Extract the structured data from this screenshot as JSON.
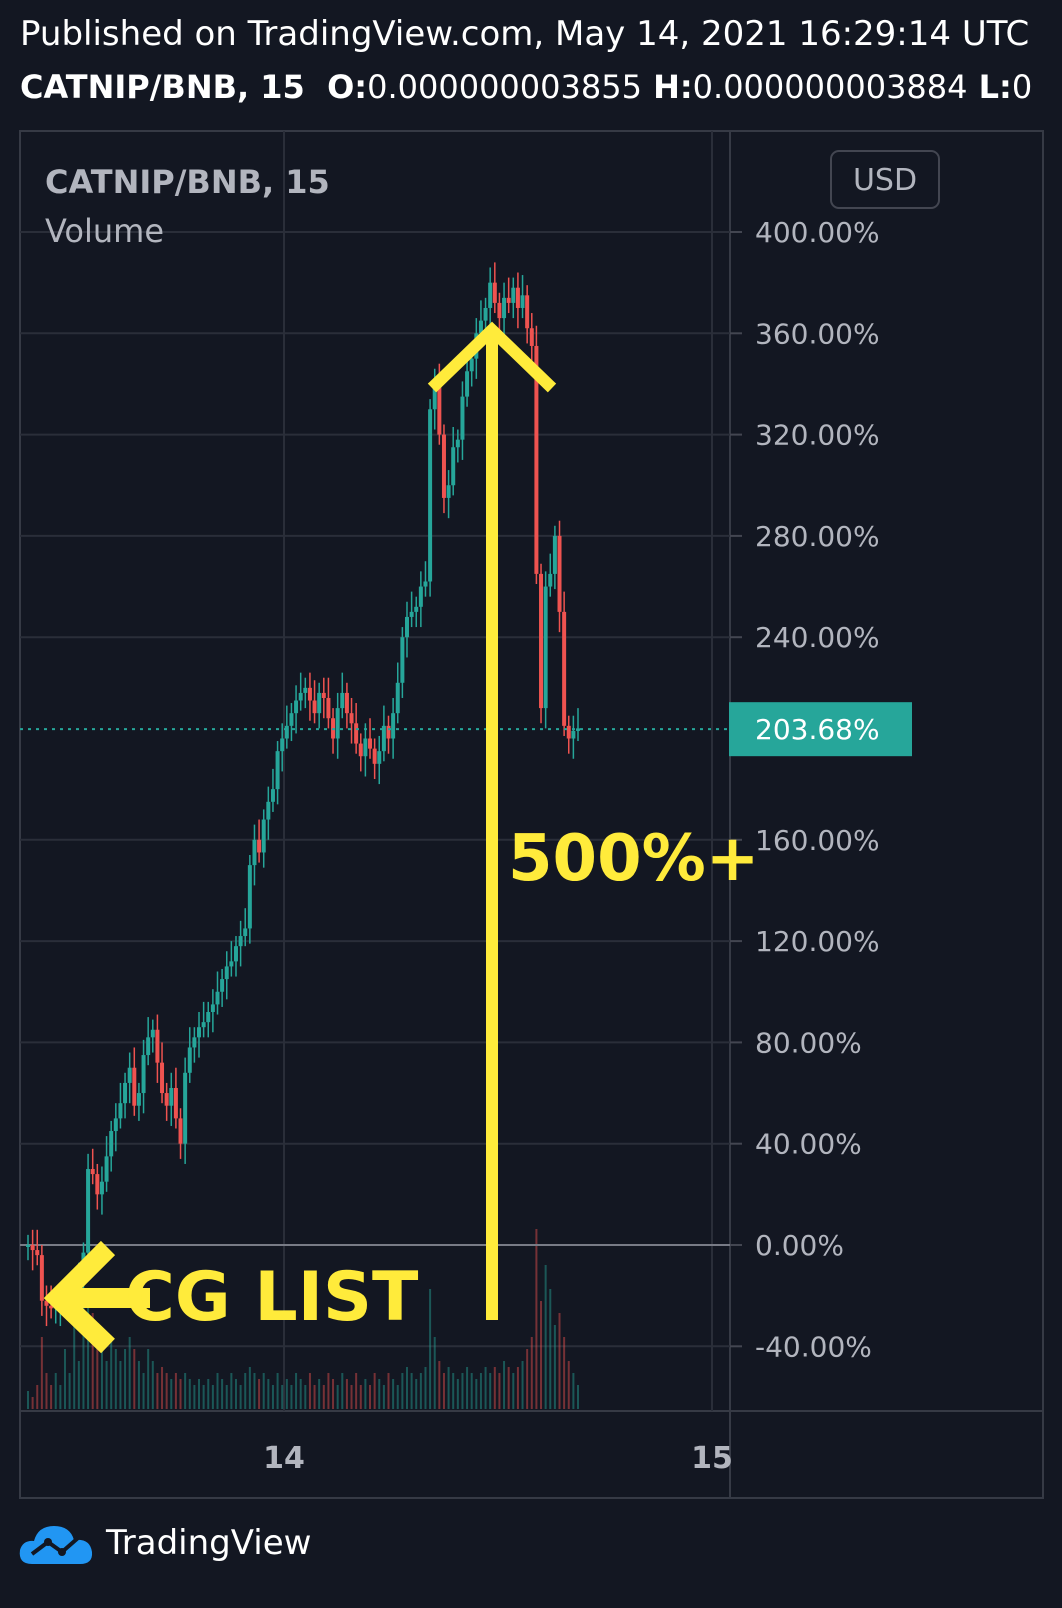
{
  "header": {
    "published": "Published on TradingView.com, May 14, 2021 16:29:14 UTC",
    "symbol": "CATNIP/BNB, 15",
    "o_label": "O:",
    "o_value": "0.000000003855",
    "h_label": "H:",
    "h_value": "0.000000003884",
    "l_label": "L:",
    "l_value": "0"
  },
  "legend": {
    "symbol": "CATNIP/BNB, 15",
    "volume": "Volume"
  },
  "currency_button": "USD",
  "annotations": {
    "gain": "500%+",
    "listing": "CG LIST"
  },
  "brand": "TradingView",
  "colors": {
    "background": "#131722",
    "up": "#26a69a",
    "down": "#ef5350",
    "annotation": "#ffeb3b",
    "last_price_bg": "#26a69a"
  },
  "chart_data": {
    "type": "candlestick",
    "title": "CATNIP/BNB, 15",
    "ylabel": "",
    "xlabel": "",
    "y_scale": "percent",
    "ylim": [
      -64,
      404
    ],
    "y_ticks": [
      "400.00%",
      "360.00%",
      "320.00%",
      "280.00%",
      "240.00%",
      "160.00%",
      "120.00%",
      "80.00%",
      "40.00%",
      "0.00%",
      "-40.00%"
    ],
    "x_ticks": [
      "14",
      "15"
    ],
    "last_value": 203.68,
    "last_label": "203.68%",
    "grid": true,
    "candles_close": [
      0,
      -2,
      -4,
      -22,
      -24,
      -25,
      -24,
      -23,
      -22,
      -20,
      -19,
      -15,
      -3,
      30,
      28,
      20,
      25,
      35,
      45,
      50,
      56,
      64,
      70,
      55,
      60,
      75,
      82,
      85,
      72,
      60,
      55,
      62,
      50,
      40,
      68,
      78,
      82,
      86,
      88,
      92,
      95,
      100,
      105,
      110,
      112,
      118,
      122,
      125,
      150,
      160,
      155,
      168,
      175,
      180,
      195,
      200,
      205,
      210,
      215,
      218,
      220,
      215,
      210,
      218,
      216,
      208,
      200,
      212,
      218,
      210,
      206,
      198,
      193,
      200,
      196,
      190,
      195,
      205,
      200,
      210,
      222,
      240,
      248,
      250,
      252,
      260,
      262,
      330,
      340,
      320,
      295,
      300,
      315,
      318,
      335,
      345,
      350,
      360,
      365,
      370,
      380,
      372,
      366,
      374,
      372,
      378,
      370,
      375,
      362,
      355,
      265,
      212,
      260,
      265,
      280,
      250,
      205,
      200,
      203,
      204
    ],
    "volume_rel": [
      0.15,
      0.1,
      0.2,
      0.6,
      0.3,
      0.2,
      0.3,
      0.2,
      0.5,
      0.3,
      0.8,
      0.4,
      0.9,
      1.0,
      0.8,
      0.6,
      0.5,
      0.4,
      0.6,
      0.5,
      0.4,
      0.5,
      0.6,
      0.5,
      0.4,
      0.3,
      0.5,
      0.4,
      0.3,
      0.35,
      0.3,
      0.25,
      0.3,
      0.25,
      0.3,
      0.25,
      0.2,
      0.25,
      0.2,
      0.25,
      0.2,
      0.3,
      0.25,
      0.2,
      0.3,
      0.25,
      0.2,
      0.3,
      0.35,
      0.3,
      0.25,
      0.3,
      0.25,
      0.2,
      0.3,
      0.2,
      0.25,
      0.2,
      0.3,
      0.25,
      0.2,
      0.3,
      0.2,
      0.25,
      0.2,
      0.3,
      0.25,
      0.2,
      0.3,
      0.25,
      0.2,
      0.3,
      0.2,
      0.25,
      0.2,
      0.3,
      0.25,
      0.2,
      0.3,
      0.25,
      0.2,
      0.3,
      0.35,
      0.3,
      0.25,
      0.3,
      0.35,
      1.0,
      0.6,
      0.4,
      0.3,
      0.35,
      0.3,
      0.25,
      0.3,
      0.35,
      0.3,
      0.25,
      0.3,
      0.35,
      0.3,
      0.35,
      0.3,
      0.4,
      0.35,
      0.3,
      0.35,
      0.4,
      0.5,
      0.6,
      1.5,
      0.9,
      1.2,
      1.0,
      0.7,
      0.8,
      0.6,
      0.4,
      0.3,
      0.2
    ]
  }
}
